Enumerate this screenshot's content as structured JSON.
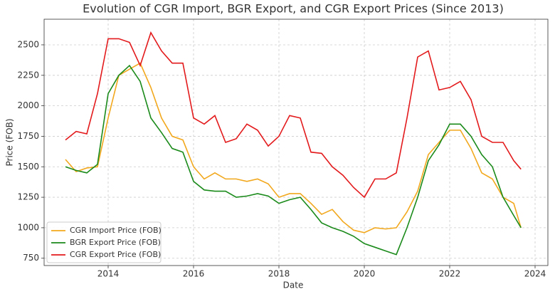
{
  "chart_data": {
    "type": "line",
    "title": "Evolution of CGR Import, BGR Export, and CGR Export Prices (Since 2013)",
    "x_label": "Date",
    "y_label": "Price (FOB)",
    "x": [
      2013.0,
      2013.25,
      2013.5,
      2013.75,
      2014.0,
      2014.25,
      2014.5,
      2014.75,
      2015.0,
      2015.25,
      2015.5,
      2015.75,
      2016.0,
      2016.25,
      2016.5,
      2016.75,
      2017.0,
      2017.25,
      2017.5,
      2017.75,
      2018.0,
      2018.25,
      2018.5,
      2018.75,
      2019.0,
      2019.25,
      2019.5,
      2019.75,
      2020.0,
      2020.25,
      2020.5,
      2020.75,
      2021.0,
      2021.25,
      2021.5,
      2021.75,
      2022.0,
      2022.25,
      2022.5,
      2022.75,
      2023.0,
      2023.25,
      2023.5,
      2023.67
    ],
    "series": [
      {
        "name": "CGR Import Price (FOB)",
        "color": "#f2a81d",
        "values": [
          1560,
          1460,
          1490,
          1500,
          1900,
          2250,
          2300,
          2350,
          2150,
          1900,
          1750,
          1720,
          1500,
          1400,
          1450,
          1400,
          1400,
          1380,
          1400,
          1360,
          1250,
          1280,
          1280,
          1200,
          1110,
          1150,
          1050,
          980,
          960,
          1000,
          990,
          1000,
          1130,
          1300,
          1600,
          1700,
          1800,
          1800,
          1650,
          1450,
          1400,
          1250,
          1200,
          1000
        ]
      },
      {
        "name": "BGR Export Price (FOB)",
        "color": "#1a8a1a",
        "values": [
          1500,
          1470,
          1450,
          1520,
          2100,
          2250,
          2330,
          2200,
          1900,
          1780,
          1650,
          1620,
          1380,
          1310,
          1300,
          1300,
          1250,
          1260,
          1280,
          1260,
          1200,
          1230,
          1250,
          1150,
          1040,
          1000,
          970,
          930,
          870,
          840,
          810,
          780,
          1000,
          1250,
          1550,
          1680,
          1850,
          1850,
          1750,
          1600,
          1500,
          1250,
          1100,
          1000
        ]
      },
      {
        "name": "CGR Export Price (FOB)",
        "color": "#e31a1c",
        "values": [
          1720,
          1790,
          1770,
          2100,
          2550,
          2550,
          2520,
          2330,
          2600,
          2450,
          2350,
          2350,
          1900,
          1850,
          1920,
          1700,
          1730,
          1850,
          1800,
          1670,
          1750,
          1920,
          1900,
          1620,
          1610,
          1500,
          1430,
          1330,
          1250,
          1400,
          1400,
          1450,
          1900,
          2400,
          2450,
          2130,
          2150,
          2200,
          2050,
          1750,
          1700,
          1700,
          1550,
          1480
        ]
      }
    ],
    "xlim": [
      2012.5,
      2024.3
    ],
    "xticks": [
      2014,
      2016,
      2018,
      2020,
      2022,
      2024
    ],
    "ylim": [
      690,
      2710
    ],
    "yticks": [
      {
        "value": 750,
        "label": "750"
      },
      1000,
      1250,
      1500,
      1750,
      2000,
      2250,
      2500
    ],
    "grid": true,
    "legend": "lower left"
  }
}
